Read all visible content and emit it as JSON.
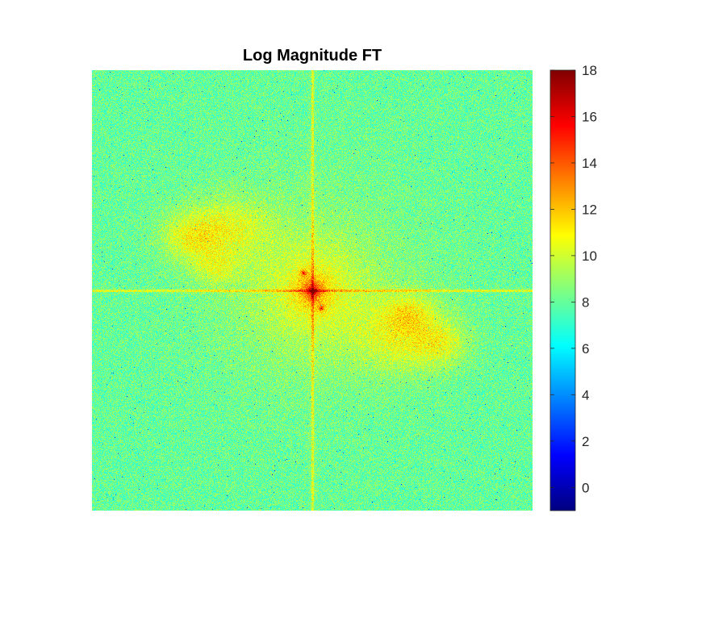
{
  "chart_data": {
    "type": "heatmap",
    "title": "Log Magnitude FT",
    "colormap": "jet",
    "xlabel": "",
    "ylabel": "",
    "axes_visible": false,
    "color_limits": [
      -1,
      18
    ],
    "colorbar": {
      "location": "right",
      "ticks": [
        0,
        2,
        4,
        6,
        8,
        10,
        12,
        14,
        16,
        18
      ],
      "tick_labels": [
        "0",
        "2",
        "4",
        "6",
        "8",
        "10",
        "12",
        "14",
        "16",
        "18"
      ]
    },
    "features": {
      "background_level": 8,
      "center_peak_level": 17,
      "axis_lines_level": 10.5,
      "side_lobes_level": 10
    }
  }
}
